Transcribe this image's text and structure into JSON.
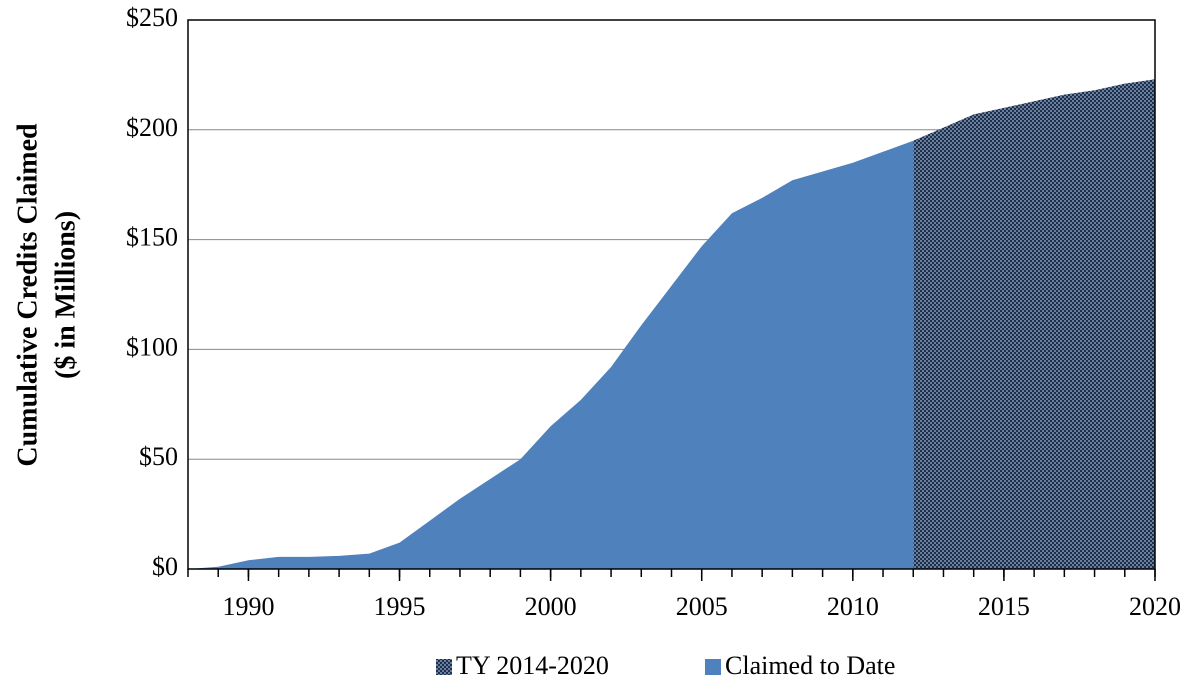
{
  "chart_data": {
    "type": "area",
    "ylabel": [
      "Cumulative Credits Claimed",
      "($ in Millions)"
    ],
    "x": [
      1988,
      1989,
      1990,
      1991,
      1992,
      1993,
      1994,
      1995,
      1996,
      1997,
      1998,
      1999,
      2000,
      2001,
      2002,
      2003,
      2004,
      2005,
      2006,
      2007,
      2008,
      2009,
      2010,
      2011,
      2012,
      2013,
      2014,
      2015,
      2016,
      2017,
      2018,
      2019,
      2020
    ],
    "series": [
      {
        "name": "TY 2014-2020",
        "color": "#1c2f4d",
        "pattern": "checkerboard",
        "values": [
          null,
          null,
          null,
          null,
          null,
          null,
          null,
          null,
          null,
          null,
          null,
          null,
          null,
          null,
          null,
          null,
          null,
          null,
          null,
          null,
          null,
          null,
          null,
          null,
          195,
          201,
          207,
          210,
          213,
          216,
          218,
          221,
          223
        ]
      },
      {
        "name": "Claimed to Date",
        "color": "#4f81bd",
        "values": [
          0,
          1,
          4,
          5.5,
          5.5,
          6,
          7,
          12,
          22,
          32,
          41,
          50,
          65,
          77,
          92,
          111,
          129,
          147,
          162,
          169,
          177,
          181,
          185,
          190,
          195,
          null,
          null,
          null,
          null,
          null,
          null,
          null,
          null
        ]
      }
    ],
    "xlim": [
      1988,
      2020
    ],
    "xticks": [
      1990,
      1995,
      2000,
      2005,
      2010,
      2015,
      2020
    ],
    "ylim": [
      0,
      250
    ],
    "yticks": [
      {
        "value": 0,
        "label": "$0"
      },
      {
        "value": 50,
        "label": "$50"
      },
      {
        "value": 100,
        "label": "$100"
      },
      {
        "value": 150,
        "label": "$150"
      },
      {
        "value": 200,
        "label": "$200"
      },
      {
        "value": 250,
        "label": "$250"
      }
    ],
    "grid": true,
    "legend": "bottom"
  }
}
